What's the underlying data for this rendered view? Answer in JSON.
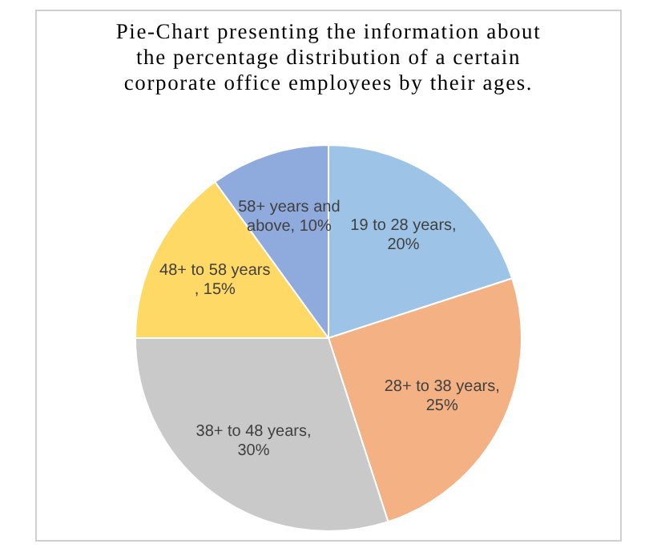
{
  "chart_data": {
    "type": "pie",
    "title": "Pie-Chart presenting the information about the percentage distribution of a certain corporate office employees by their ages.",
    "categories": [
      "19 to 28 years",
      "28+ to 38 years",
      "38+ to 48 years",
      "48+ to 58 years ",
      "58+ years and above"
    ],
    "values": [
      20,
      25,
      30,
      15,
      10
    ],
    "colors": [
      "#9dc3e6",
      "#f4b183",
      "#c9c9c9",
      "#ffd966",
      "#8faadc"
    ],
    "value_labels": [
      ", 20%",
      ", 25%",
      ", 30%",
      ", 15%",
      ", 10%"
    ],
    "legend": false
  }
}
